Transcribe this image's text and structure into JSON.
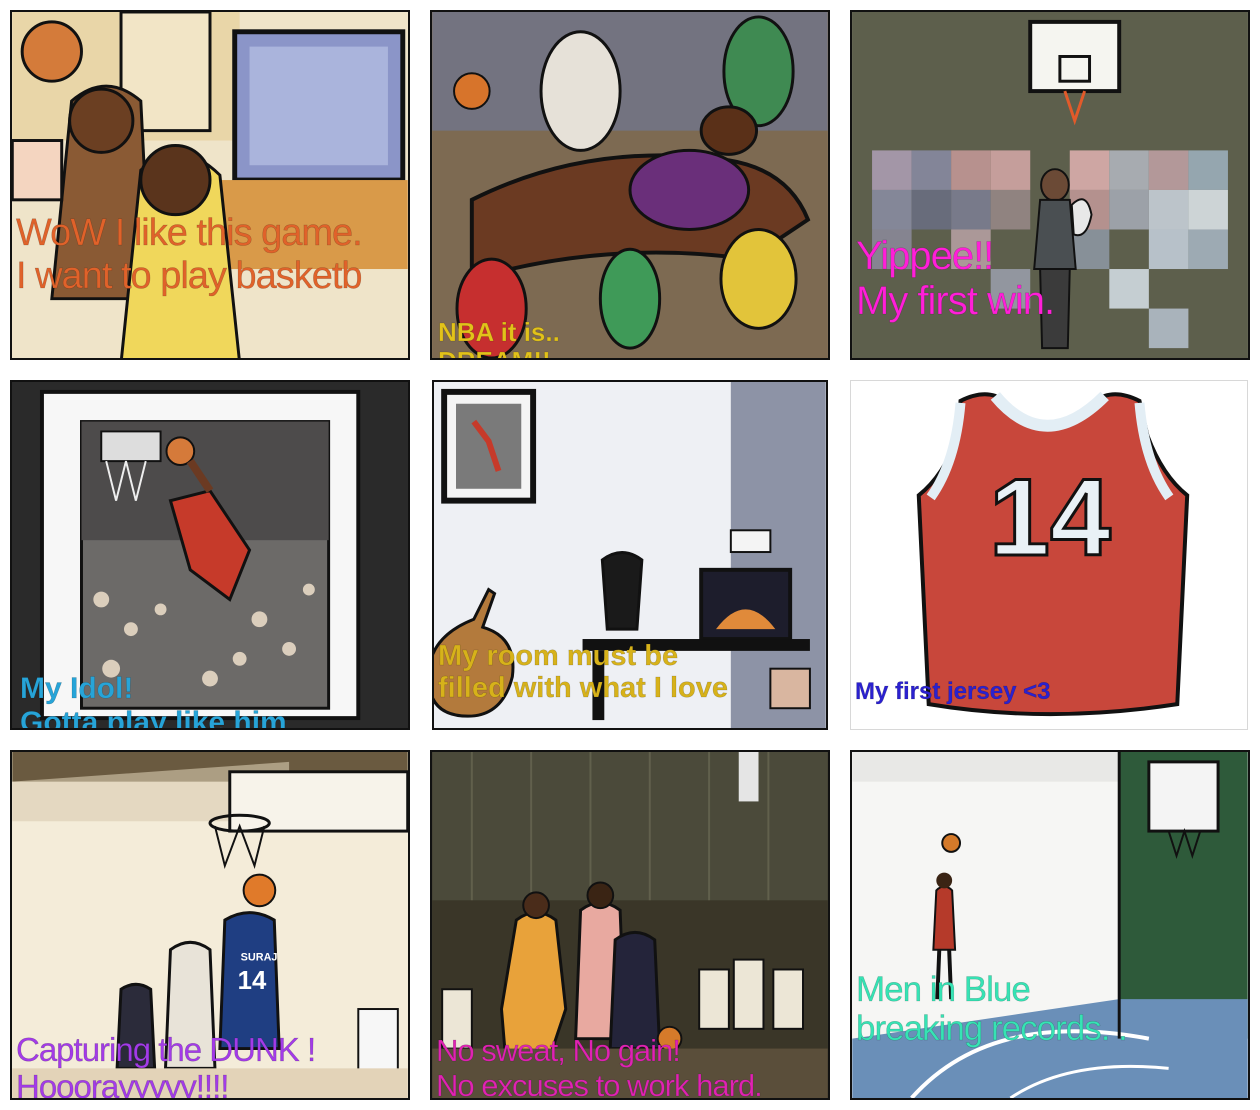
{
  "panels": [
    {
      "scene": "kids-watching-tv-icon",
      "caption": [
        "WoW I like this game.",
        "I want to play basketb"
      ],
      "color": "#e0622a"
    },
    {
      "scene": "nba-players-collage-icon",
      "caption": [
        "NBA it is..",
        "DREAM!!"
      ],
      "color": "#e2c21a"
    },
    {
      "scene": "girl-with-trophy-icon",
      "caption": [
        "Yippee!!",
        "My first win."
      ],
      "color": "#ff1fd8"
    },
    {
      "scene": "framed-dunk-poster-icon",
      "caption": [
        "My Idol!",
        "Gotta play like him"
      ],
      "color": "#27a4d8"
    },
    {
      "scene": "room-with-desk-icon",
      "caption": [
        "My room must be",
        "filled with what I love"
      ],
      "color": "#d7b21a"
    },
    {
      "scene": "red-jersey-14-icon",
      "caption": [
        "My first jersey <3"
      ],
      "color": "#2b21d0"
    },
    {
      "scene": "player-dunking-icon",
      "caption": [
        "Capturing the DUNK !",
        "Hooorayyyyy!!!!"
      ],
      "color": "#a33be8"
    },
    {
      "scene": "players-practice-icon",
      "caption": [
        "No sweat, No gain!",
        "No excuses to work hard."
      ],
      "color": "#e023b3"
    },
    {
      "scene": "empty-court-icon",
      "caption": [
        "Men in Blue",
        "breaking records. ."
      ],
      "color": "#36e3b4"
    }
  ],
  "jersey_number": "14",
  "player_name": "SURAJ",
  "player_number": "14"
}
